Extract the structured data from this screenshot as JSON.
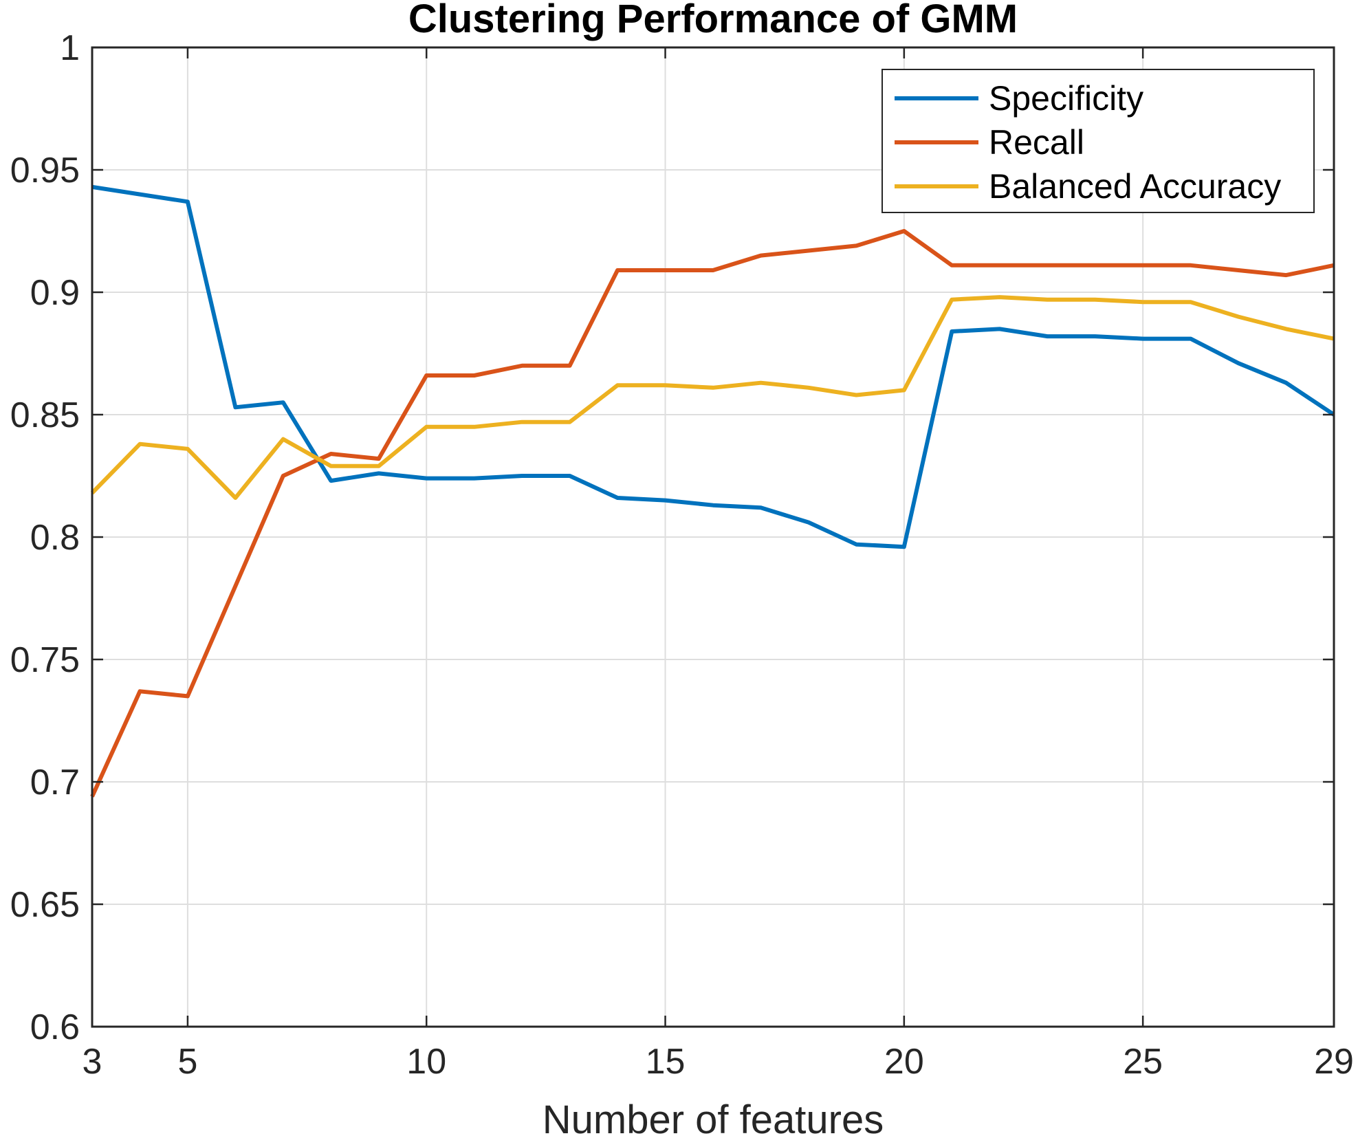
{
  "chart_data": {
    "type": "line",
    "title": "Clustering Performance of GMM",
    "xlabel": "Number of features",
    "ylabel": "",
    "xlim": [
      3,
      29
    ],
    "ylim": [
      0.6,
      1
    ],
    "xticks": [
      3,
      5,
      10,
      15,
      20,
      25,
      29
    ],
    "xtick_labels": [
      "3",
      "5",
      "10",
      "15",
      "20",
      "25",
      "29"
    ],
    "yticks": [
      0.6,
      0.65,
      0.7,
      0.75,
      0.8,
      0.85,
      0.9,
      0.95,
      1
    ],
    "ytick_labels": [
      "0.6",
      "0.65",
      "0.7",
      "0.75",
      "0.8",
      "0.85",
      "0.9",
      "0.95",
      "1"
    ],
    "grid": true,
    "legend_position": "top-right",
    "x": [
      3,
      4,
      5,
      6,
      7,
      8,
      9,
      10,
      11,
      12,
      13,
      14,
      15,
      16,
      17,
      18,
      19,
      20,
      21,
      22,
      23,
      24,
      25,
      26,
      27,
      28,
      29
    ],
    "series": [
      {
        "name": "Specificity",
        "color": "#0072BD",
        "values": [
          0.943,
          0.94,
          0.937,
          0.853,
          0.855,
          0.823,
          0.826,
          0.824,
          0.824,
          0.825,
          0.825,
          0.816,
          0.815,
          0.813,
          0.812,
          0.806,
          0.797,
          0.796,
          0.884,
          0.885,
          0.882,
          0.882,
          0.881,
          0.881,
          0.871,
          0.863,
          0.85
        ]
      },
      {
        "name": "Recall",
        "color": "#D95319",
        "values": [
          0.694,
          0.737,
          0.735,
          0.78,
          0.825,
          0.834,
          0.832,
          0.866,
          0.866,
          0.87,
          0.87,
          0.909,
          0.909,
          0.909,
          0.915,
          0.917,
          0.919,
          0.925,
          0.911,
          0.911,
          0.911,
          0.911,
          0.911,
          0.911,
          0.909,
          0.907,
          0.911
        ]
      },
      {
        "name": "Balanced Accuracy",
        "color": "#EDB120",
        "values": [
          0.818,
          0.838,
          0.836,
          0.816,
          0.84,
          0.829,
          0.829,
          0.845,
          0.845,
          0.847,
          0.847,
          0.862,
          0.862,
          0.861,
          0.863,
          0.861,
          0.858,
          0.86,
          0.897,
          0.898,
          0.897,
          0.897,
          0.896,
          0.896,
          0.89,
          0.885,
          0.881
        ]
      }
    ]
  }
}
